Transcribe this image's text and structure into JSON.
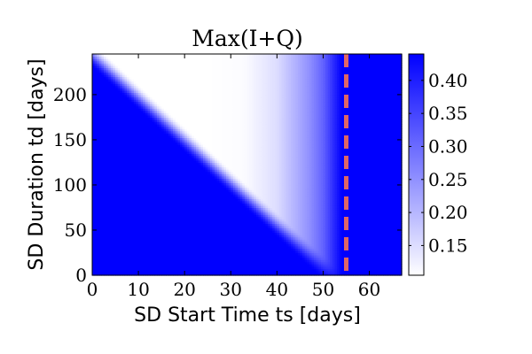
{
  "chart_data": {
    "type": "heatmap",
    "title": "Max(I+Q)",
    "xlabel": "SD Start Time ts [days]",
    "ylabel": "SD Duration td [days]",
    "xlim": [
      0,
      67
    ],
    "ylim": [
      0,
      245
    ],
    "x_ticks": [
      0,
      10,
      20,
      30,
      40,
      50,
      60
    ],
    "y_ticks": [
      0,
      50,
      100,
      150,
      200
    ],
    "colorbar": {
      "vmin": 0.105,
      "vmax": 0.44,
      "ticks": [
        0.15,
        0.2,
        0.25,
        0.3,
        0.35,
        0.4
      ],
      "colormap": [
        "#ffffff",
        "#0000ff"
      ]
    },
    "surface": {
      "high_value": 0.44,
      "low_value": 0.105,
      "boundary_ts_at_td0": 52,
      "boundary_ts_at_td245": 0,
      "boundary_width_days": 6,
      "plateau_ts_range": [
        25,
        33
      ],
      "rise_ts_range": [
        33,
        54
      ],
      "rise_value_at_ts33": 0.11,
      "rise_value_at_ts40": 0.15,
      "rise_value_at_ts47": 0.25,
      "rise_value_at_ts50": 0.31,
      "rise_value_at_ts54": 0.44
    },
    "annotations": [
      {
        "type": "vertical-line",
        "x": 55,
        "style": "dashed",
        "color": "#e06666"
      }
    ],
    "grid": false
  }
}
